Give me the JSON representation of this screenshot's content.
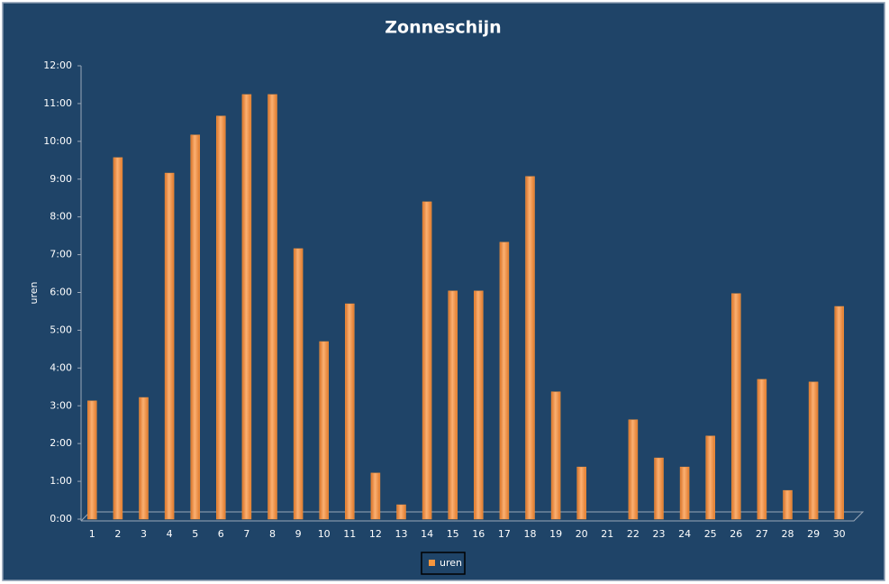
{
  "chart_data": {
    "type": "bar",
    "title": "Zonneschijn",
    "y_label": "uren",
    "categories": [
      "1",
      "2",
      "3",
      "4",
      "5",
      "6",
      "7",
      "8",
      "9",
      "10",
      "11",
      "12",
      "13",
      "14",
      "15",
      "16",
      "17",
      "18",
      "19",
      "20",
      "21",
      "22",
      "23",
      "24",
      "25",
      "26",
      "27",
      "28",
      "29",
      "30"
    ],
    "series": [
      {
        "name": "uren",
        "color": "#f7963d",
        "values": [
          3.13,
          9.57,
          3.22,
          9.16,
          10.17,
          10.67,
          11.24,
          11.24,
          7.16,
          4.7,
          5.7,
          1.22,
          0.38,
          8.4,
          6.04,
          6.04,
          7.33,
          9.07,
          3.37,
          1.38,
          0,
          2.63,
          1.62,
          1.38,
          2.2,
          5.97,
          3.7,
          0.76,
          3.63,
          5.63
        ]
      }
    ],
    "ylim": [
      0,
      12
    ],
    "yticks": [
      {
        "value": 0,
        "label": "0:00"
      },
      {
        "value": 1,
        "label": "1:00"
      },
      {
        "value": 2,
        "label": "2:00"
      },
      {
        "value": 3,
        "label": "3:00"
      },
      {
        "value": 4,
        "label": "4:00"
      },
      {
        "value": 5,
        "label": "5:00"
      },
      {
        "value": 6,
        "label": "6:00"
      },
      {
        "value": 7,
        "label": "7:00"
      },
      {
        "value": 8,
        "label": "8:00"
      },
      {
        "value": 9,
        "label": "9:00"
      },
      {
        "value": 10,
        "label": "10:00"
      },
      {
        "value": 11,
        "label": "11:00"
      },
      {
        "value": 12,
        "label": "12:00"
      }
    ],
    "grid": false,
    "legend": "bottom"
  }
}
